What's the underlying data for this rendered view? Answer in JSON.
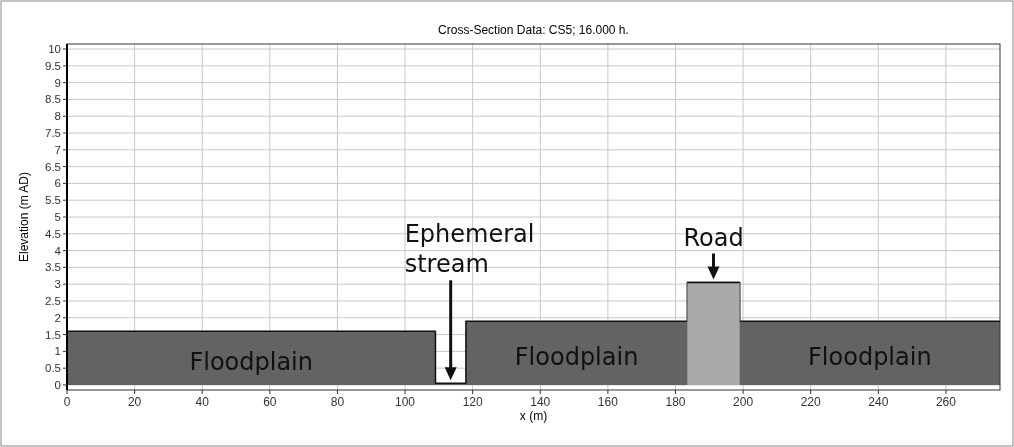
{
  "chart_data": {
    "type": "area",
    "title": "Cross-Section Data: CS5; 16.000 h.",
    "xlabel": "x (m)",
    "ylabel": "Elevation (m AD)",
    "xlim": [
      0,
      276
    ],
    "xticks": [
      0,
      20,
      40,
      60,
      80,
      100,
      120,
      140,
      160,
      180,
      200,
      220,
      240,
      260
    ],
    "ylim": [
      -0.15,
      10.15
    ],
    "yticks": [
      0,
      0.5,
      1,
      1.5,
      2,
      2.5,
      3,
      3.5,
      4,
      4.5,
      5,
      5.5,
      6,
      6.5,
      7,
      7.5,
      8,
      8.5,
      9,
      9.5,
      10
    ],
    "grid": true,
    "legend": false,
    "series": [
      {
        "color": "#636363",
        "x": [
          0,
          109,
          109,
          118,
          118,
          183.5,
          183.5,
          199,
          199,
          276
        ],
        "values": [
          1.6,
          1.6,
          0.05,
          0.05,
          1.9,
          1.9,
          3.05,
          3.05,
          1.9,
          1.9
        ]
      },
      {
        "color": "#a9a9a9",
        "x": [
          183.5,
          191,
          199
        ],
        "values": [
          3.05,
          3.05,
          3.05
        ]
      }
    ],
    "annotations": [
      "Ephemeral stream",
      "Road",
      "Floodplain",
      "Floodplain",
      "Floodplain"
    ]
  }
}
